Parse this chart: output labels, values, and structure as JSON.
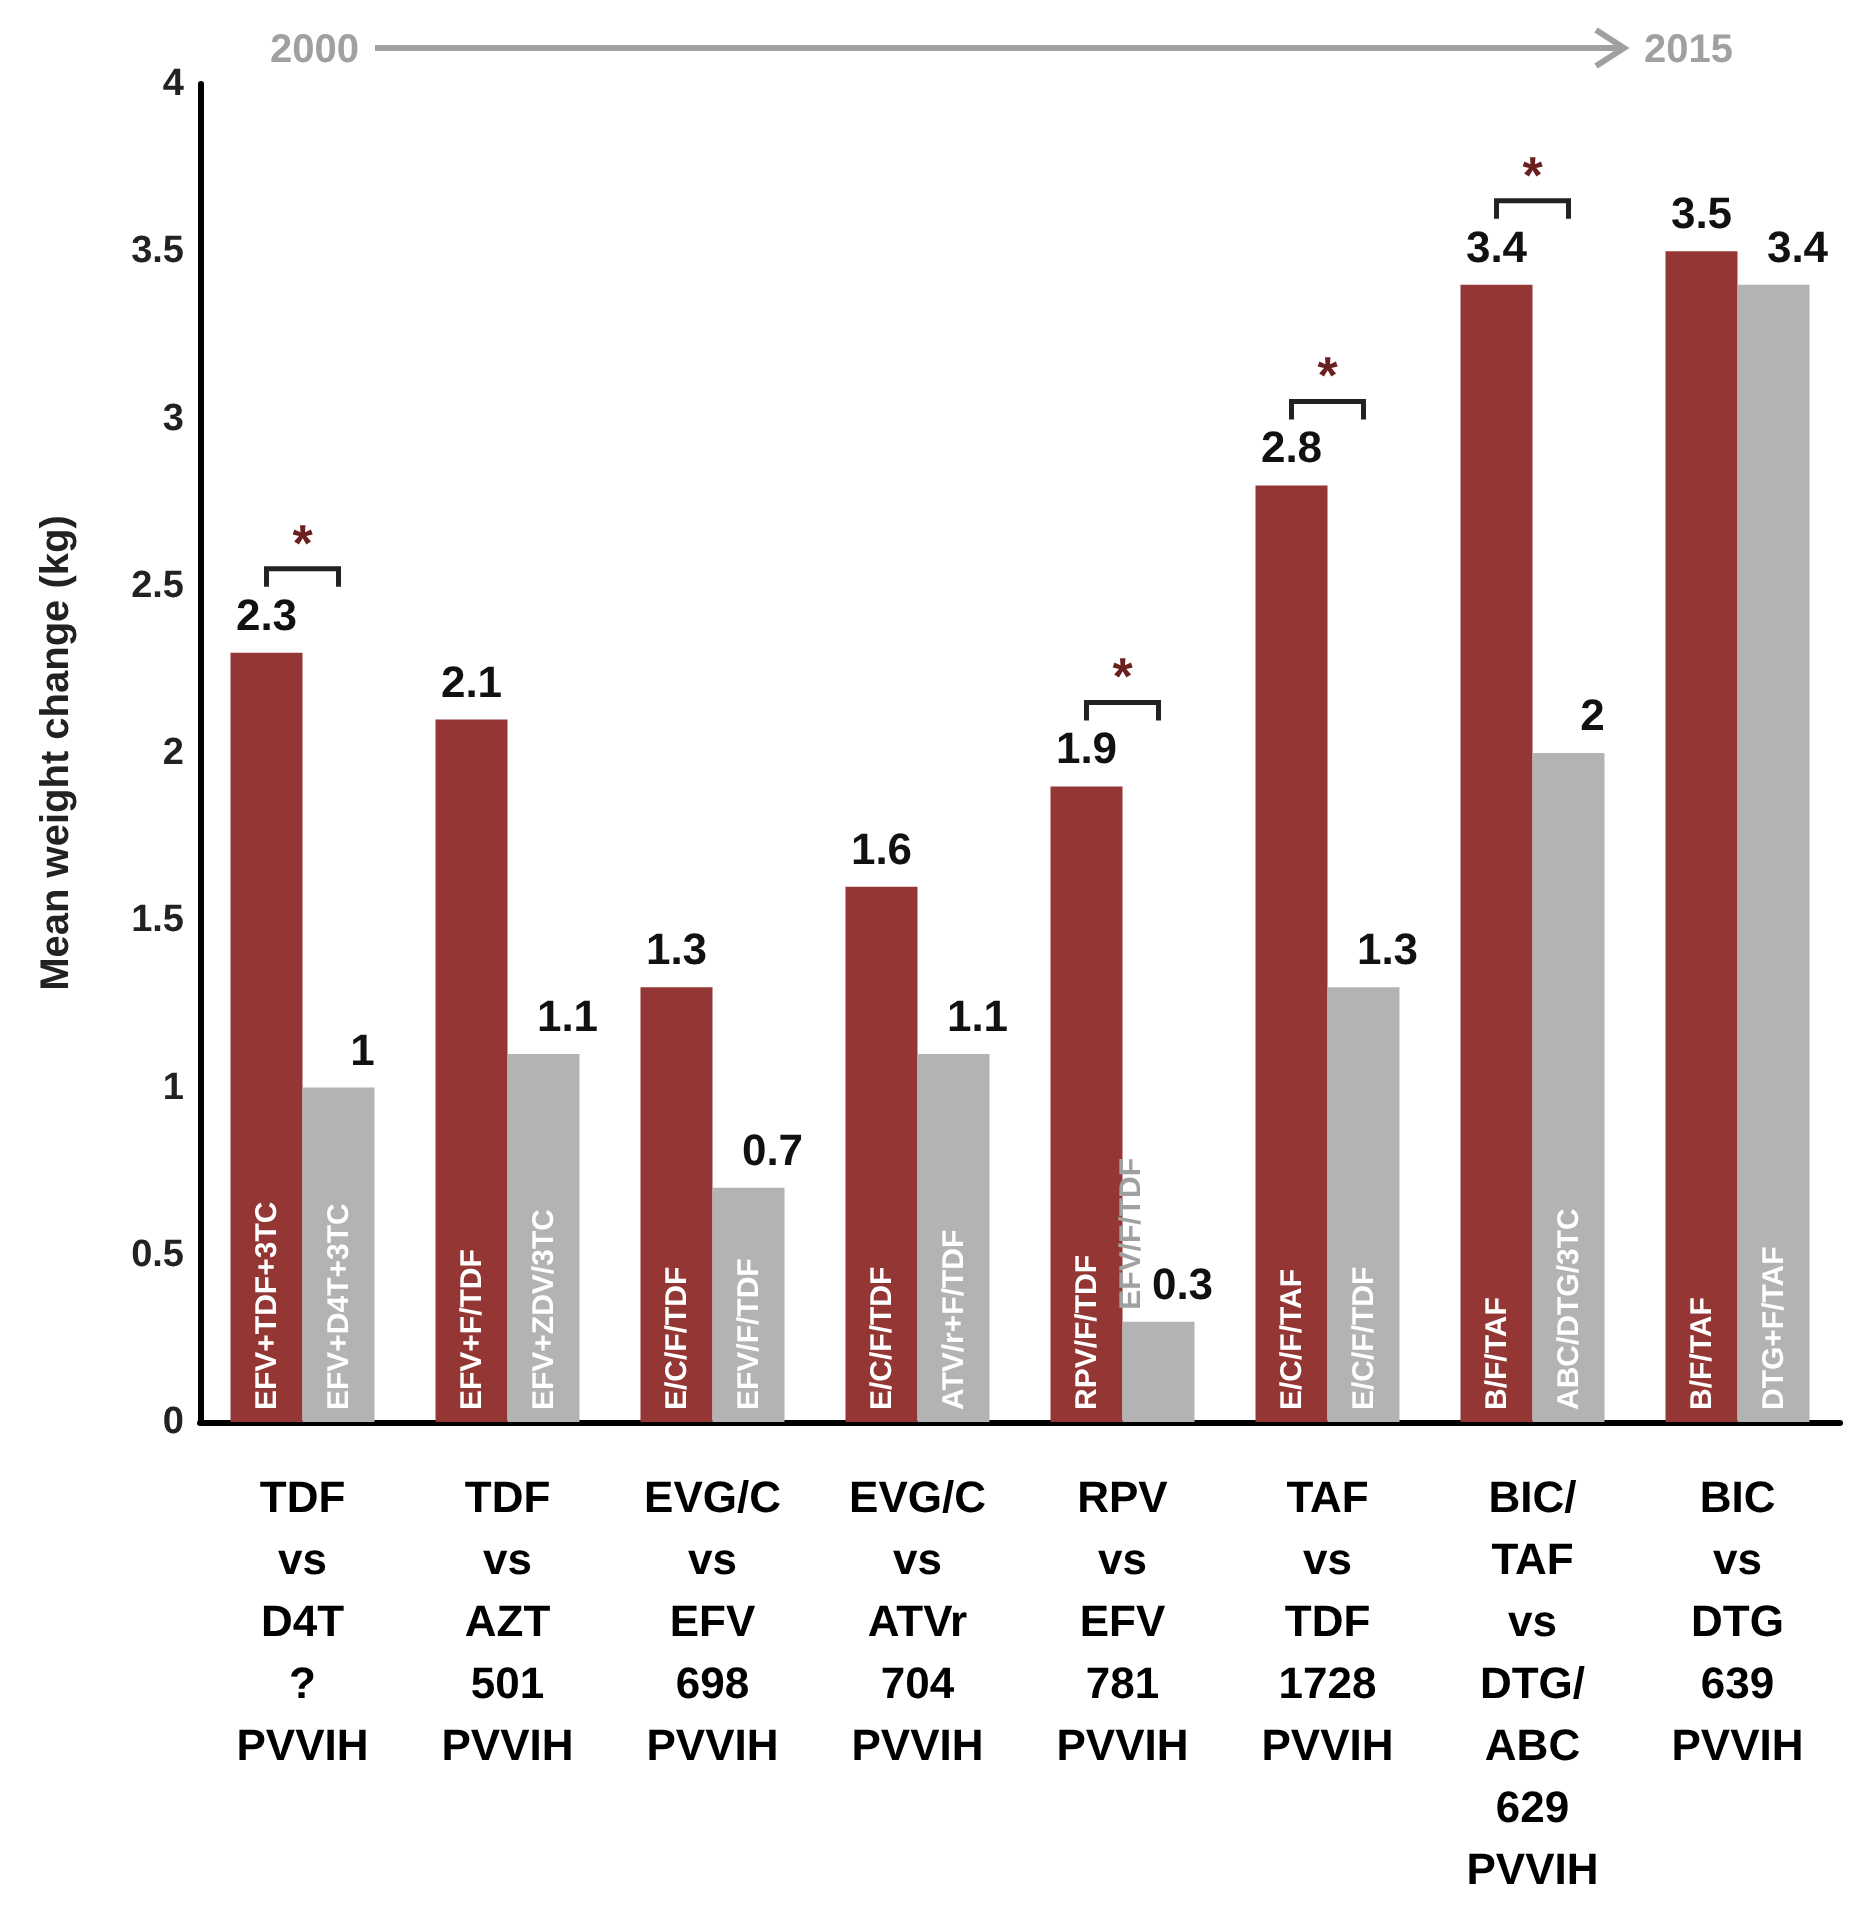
{
  "chart_data": {
    "type": "bar",
    "ylabel": "Mean weight change (kg)",
    "categories": [
      "TDF\nvs\nD4T\n?\nPVVIH",
      "TDF\nvs\nAZT\n501\nPVVIH",
      "EVG/C\nvs\nEFV\n698\nPVVIH",
      "EVG/C\nvs\nATVr\n704\nPVVIH",
      "RPV\nvs\nEFV\n781\nPVVIH",
      "TAF\nvs\nTDF\n1728\nPVVIH",
      "BIC/\nTAF\nvs\nDTG/\nABC\n629\nPVVIH",
      "BIC\nvs\nDTG\n639\nPVVIH"
    ],
    "series": [
      {
        "color": "#943634",
        "values": [
          2.3,
          2.1,
          1.3,
          1.6,
          1.9,
          2.8,
          3.4,
          3.5
        ]
      },
      {
        "color": "#b3b3b3",
        "values": [
          1,
          1.1,
          0.7,
          1.1,
          0.3,
          1.3,
          2,
          3.4
        ]
      }
    ],
    "ylim": [
      0,
      4
    ],
    "yticks": [
      0,
      0.5,
      1,
      1.5,
      2,
      2.5,
      3,
      3.5,
      4
    ],
    "data_labels": true,
    "annotations": [
      "2000",
      "2015",
      {
        "text": "EFV+TDF+3TC",
        "x": "TDF\nvs\nD4T\n?\nPVVIH",
        "y": 0
      },
      {
        "text": "EFV+D4T+3TC",
        "x": "TDF\nvs\nD4T\n?\nPVVIH",
        "y": 0
      },
      {
        "text": "EFV+F/TDF",
        "x": "TDF\nvs\nAZT\n501\nPVVIH",
        "y": 0
      },
      {
        "text": "EFV+ZDV/3TC",
        "x": "TDF\nvs\nAZT\n501\nPVVIH",
        "y": 0
      },
      {
        "text": "E/C/F/TDF",
        "x": "EVG/C\nvs\nEFV\n698\nPVVIH",
        "y": 0
      },
      {
        "text": "EFV/F/TDF",
        "x": "EVG/C\nvs\nEFV\n698\nPVVIH",
        "y": 0
      },
      {
        "text": "E/C/F/TDF",
        "x": "EVG/C\nvs\nATVr\n704\nPVVIH",
        "y": 0
      },
      {
        "text": "ATV/r+F/TDF",
        "x": "EVG/C\nvs\nATVr\n704\nPVVIH",
        "y": 0
      },
      {
        "text": "RPV/F/TDF",
        "x": "RPV\nvs\nEFV\n781\nPVVIH",
        "y": 0
      },
      {
        "text": "EFV/F/TDF",
        "x": "RPV\nvs\nEFV\n781\nPVVIH",
        "y": 0.3
      },
      {
        "text": "E/C/F/TAF",
        "x": "TAF\nvs\nTDF\n1728\nPVVIH",
        "y": 0
      },
      {
        "text": "E/C/F/TDF",
        "x": "TAF\nvs\nTDF\n1728\nPVVIH",
        "y": 0
      },
      {
        "text": "B/F/TAF",
        "x": "BIC/\nTAF\nvs\nDTG/\nABC\n629\nPVVIH",
        "y": 0
      },
      {
        "text": "ABC/DTG/3TC",
        "x": "BIC/\nTAF\nvs\nDTG/\nABC\n629\nPVVIH",
        "y": 0
      },
      {
        "text": "B/F/TAF",
        "x": "BIC\nvs\nDTG\n639\nPVVIH",
        "y": 0
      },
      {
        "text": "DTG+F/TAF",
        "x": "BIC\nvs\nDTG\n639\nPVVIH",
        "y": 0
      },
      {
        "text": "*",
        "x": "TDF\nvs\nD4T\n?\nPVVIH",
        "y": 2.3
      },
      {
        "text": "*",
        "x": "RPV\nvs\nEFV\n781\nPVVIH",
        "y": 1.9
      },
      {
        "text": "*",
        "x": "TAF\nvs\nTDF\n1728\nPVVIH",
        "y": 2.8
      },
      {
        "text": "*",
        "x": "BIC/\nTAF\nvs\nDTG/\nABC\n629\nPVVIH",
        "y": 3.4
      }
    ]
  }
}
